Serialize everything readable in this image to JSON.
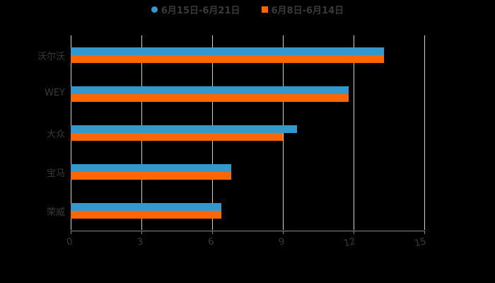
{
  "chart_data": {
    "type": "bar",
    "orientation": "horizontal",
    "title": "",
    "xlabel": "",
    "ylabel": "",
    "categories": [
      "沃尔沃",
      "WEY",
      "大众",
      "宝马",
      "荣威"
    ],
    "series": [
      {
        "name": "6月15日-6月21日",
        "color": "#3399cc",
        "marker": "circle",
        "values": [
          13.3,
          11.8,
          9.6,
          6.8,
          6.4
        ]
      },
      {
        "name": "6月8日-6月14日",
        "color": "#ff6600",
        "marker": "square",
        "values": [
          13.3,
          11.8,
          9.0,
          6.8,
          6.4
        ]
      }
    ],
    "xlim": [
      0,
      15
    ],
    "xticks": [
      0,
      3,
      6,
      9,
      12,
      15
    ],
    "grid": "vertical",
    "legend_position": "top"
  },
  "legend": {
    "items": [
      {
        "label": "6月15日-6月21日",
        "color": "#3399cc"
      },
      {
        "label": "6月8日-6月14日",
        "color": "#ff6600"
      }
    ]
  },
  "axis": {
    "ticks": [
      "0",
      "3",
      "6",
      "9",
      "12",
      "15"
    ]
  },
  "categories": [
    "沃尔沃",
    "WEY",
    "大众",
    "宝马",
    "荣威"
  ]
}
